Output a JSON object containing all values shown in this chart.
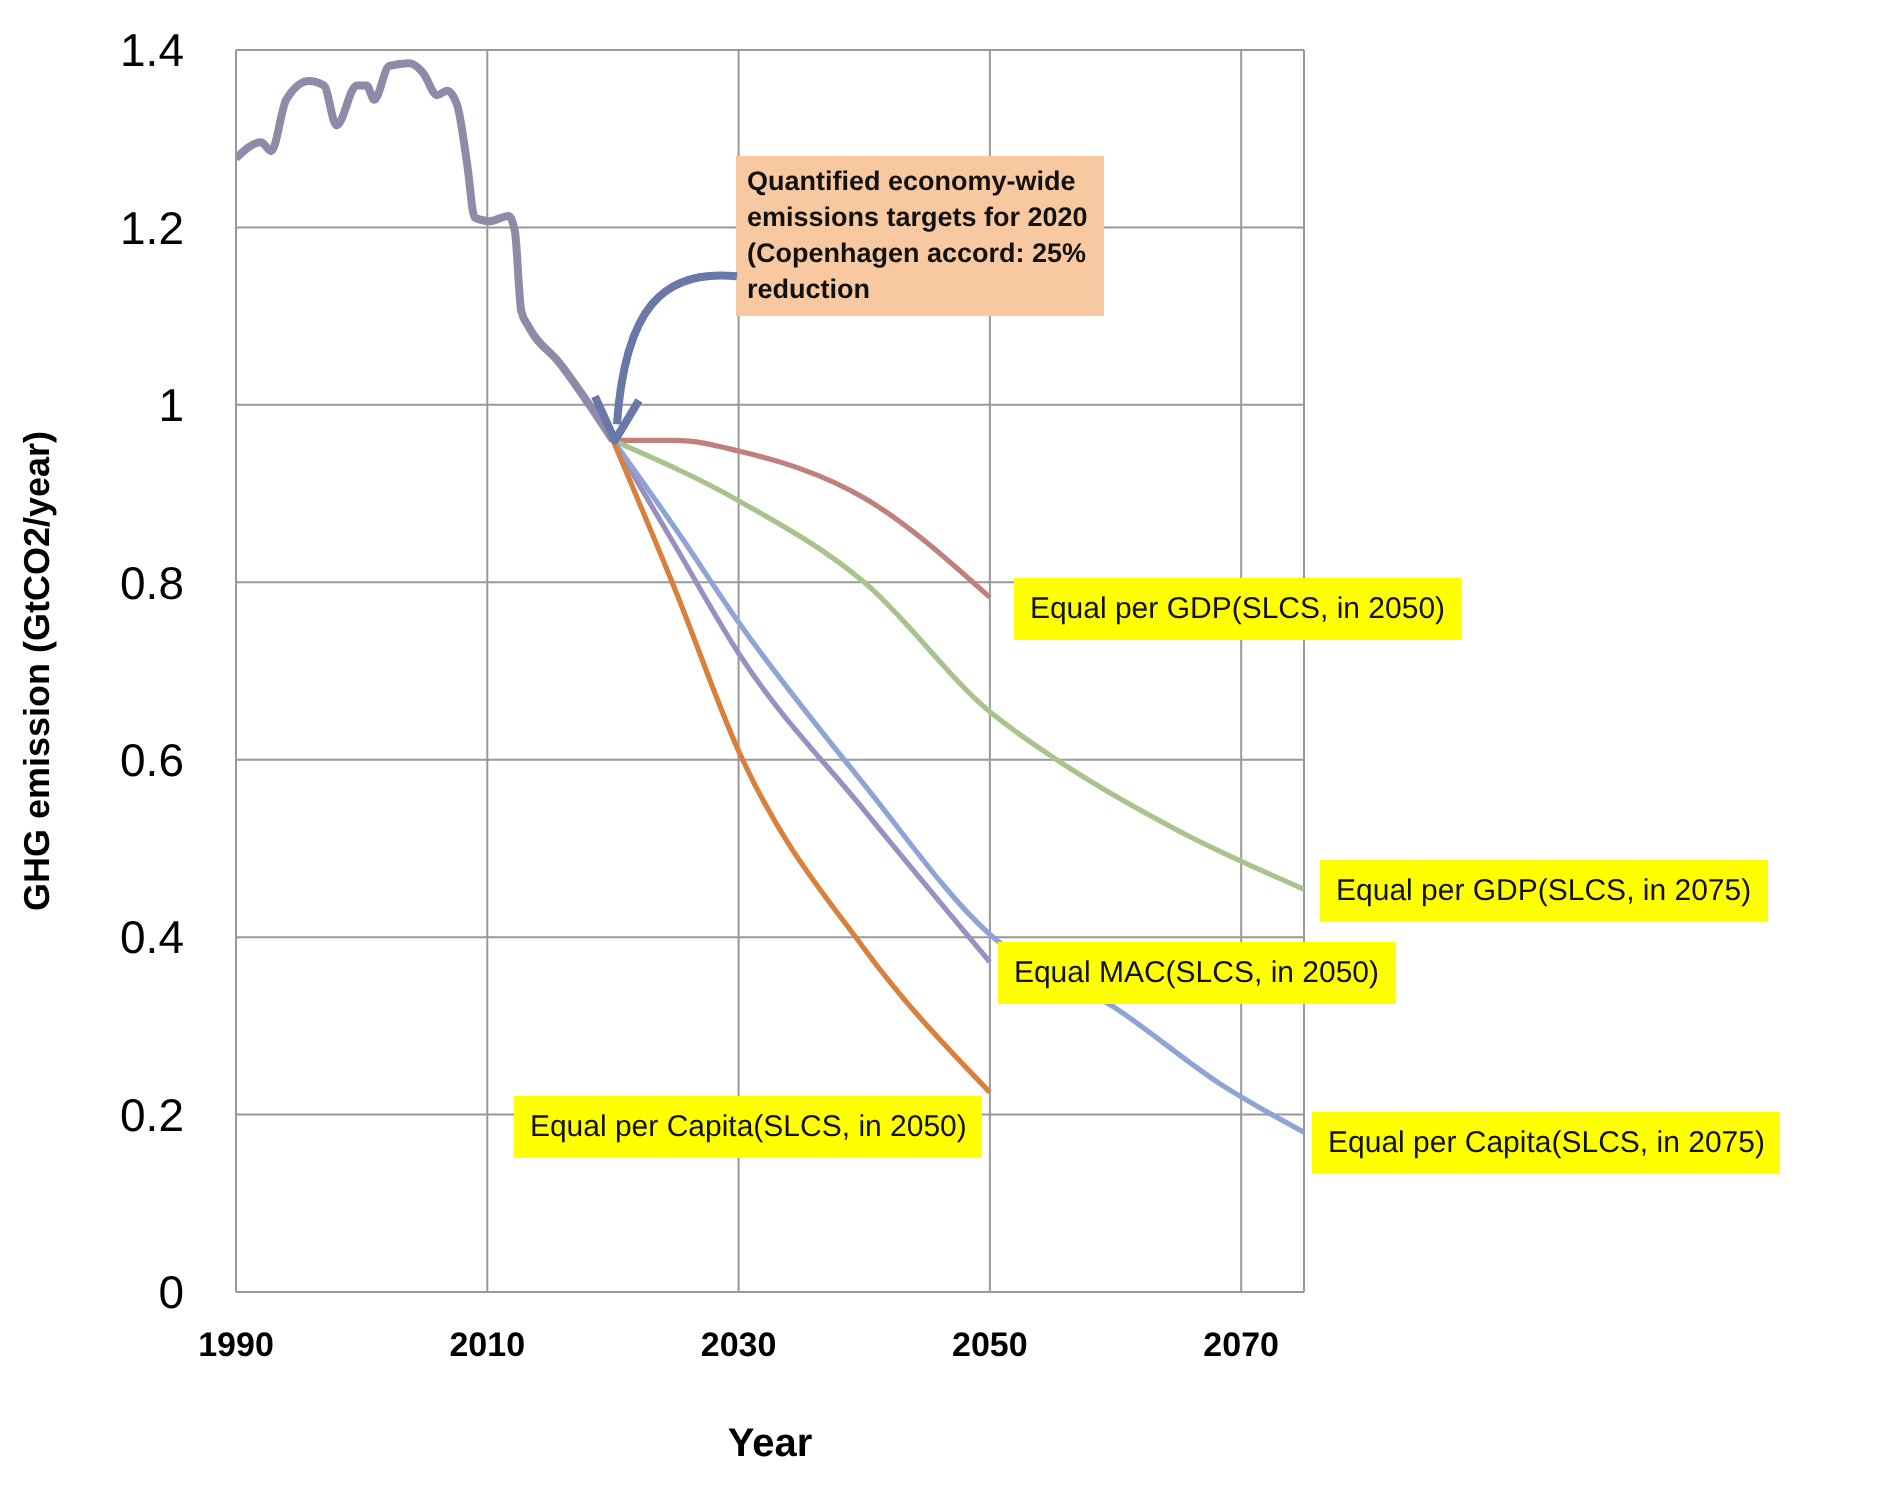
{
  "chart_data": {
    "type": "line",
    "xlabel": "Year",
    "ylabel": "GHG emission (GtCO2/year)",
    "xlim": [
      1990,
      2075
    ],
    "xticks": [
      1990,
      2010,
      2030,
      2050,
      2070
    ],
    "ylim": [
      0,
      1.4
    ],
    "yticks": [
      0,
      0.2,
      0.4,
      0.6,
      0.8,
      1,
      1.2,
      1.4
    ],
    "grid": true,
    "marker": "none",
    "series": [
      {
        "color": "#8e8aa8",
        "x": [
          1990,
          1992,
          1992.8,
          1994,
          1995.8,
          1997,
          1998,
          1999.6,
          2000.4,
          2001,
          2002.2,
          2003.8,
          2004.9,
          2006,
          2006.8,
          2007.6,
          2008.4,
          2009,
          2010.2,
          2011.7,
          2012.2,
          2012.7,
          2013.3,
          2015.7,
          2020
        ],
        "values": [
          1.278,
          1.296,
          1.286,
          1.344,
          1.365,
          1.36,
          1.315,
          1.36,
          1.36,
          1.344,
          1.382,
          1.385,
          1.374,
          1.349,
          1.354,
          1.338,
          1.271,
          1.211,
          1.207,
          1.213,
          1.195,
          1.106,
          1.088,
          1.048,
          0.96
        ]
      },
      {
        "name": "Equal per GDP(SLCS, in 2050)",
        "color": "#c0807c",
        "x": [
          2020,
          2025,
          2030,
          2040,
          2050
        ],
        "values": [
          0.96,
          0.96,
          0.948,
          0.895,
          0.783
        ]
      },
      {
        "name": "Equal per GDP(SLCS, in 2075)",
        "color": "#a8c48c",
        "x": [
          2020,
          2030,
          2040,
          2050,
          2055,
          2065,
          2075
        ],
        "values": [
          0.96,
          0.892,
          0.8,
          0.654,
          0.603,
          0.52,
          0.454
        ]
      },
      {
        "name": "Equal MAC(SLCS, in 2050)",
        "color": "#9890c0",
        "x": [
          2020,
          2025,
          2030,
          2040,
          2050
        ],
        "values": [
          0.96,
          0.84,
          0.72,
          0.543,
          0.372
        ]
      },
      {
        "name": "Equal per Capita(SLCS, in 2075)",
        "color": "#8ea4d4",
        "x": [
          2020,
          2025,
          2030,
          2040,
          2050,
          2060,
          2068.6,
          2075
        ],
        "values": [
          0.96,
          0.86,
          0.755,
          0.572,
          0.403,
          0.32,
          0.232,
          0.18
        ]
      },
      {
        "name": "Equal per Capita(SLCS, in 2050)",
        "color": "#d8803c",
        "x": [
          2020,
          2025,
          2030,
          2040,
          2050
        ],
        "values": [
          0.96,
          0.79,
          0.61,
          0.387,
          0.225
        ]
      }
    ],
    "annotations": [
      {
        "text": "Quantified economy-wide emissions targets for 2020 (Copenhagen accord: 25% reduction",
        "x": 2020,
        "y": 0.96
      }
    ]
  }
}
